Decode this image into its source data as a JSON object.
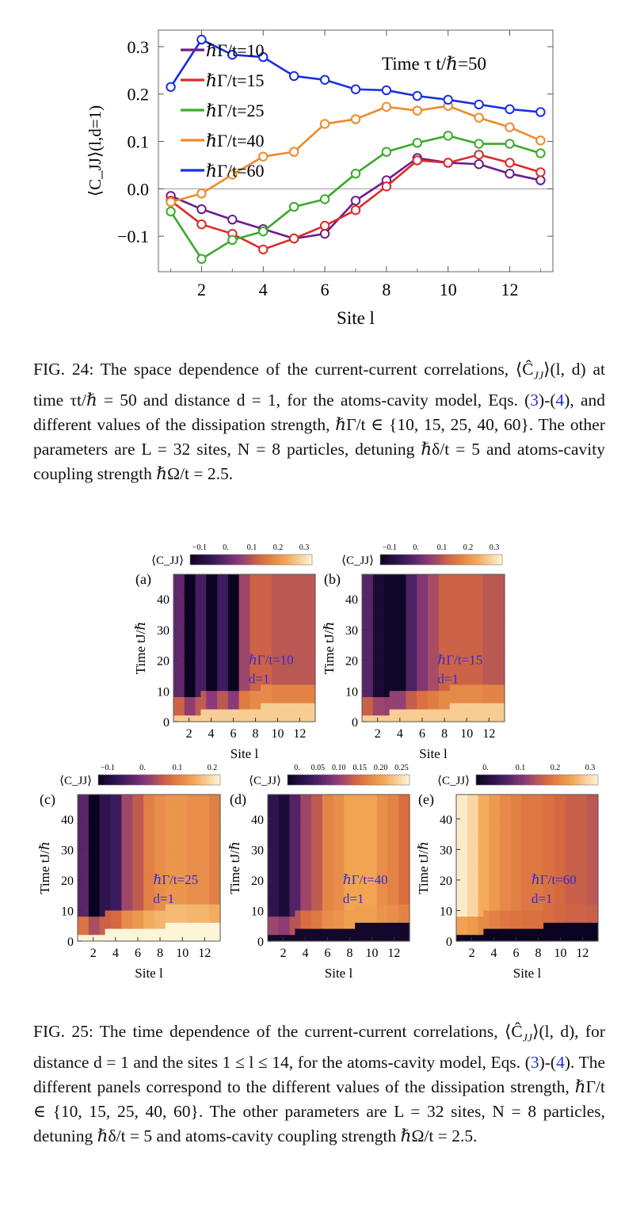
{
  "fig24": {
    "label": "FIG. 24:",
    "caption_a": " The space dependence of the current-current correlations, ⟨Ĉ",
    "caption_b": "⟩(l, d) at time τt/ℏ = 50 and distance d = 1, for the atoms-cavity model, Eqs. (",
    "ref1": "3",
    "caption_c": ")-(",
    "ref2": "4",
    "caption_d": "), and different values of the dissipation strength, ℏΓ/t ∈ {10, 15, 25, 40, 60}. The other parameters are L = 32 sites, N = 8 particles, detuning ℏδ/t = 5 and atoms-cavity coupling strength ℏΩ/t = 2.5.",
    "sub": "JJ"
  },
  "fig25": {
    "label": "FIG. 25:",
    "caption_a": " The time dependence of the current-current correlations, ⟨Ĉ",
    "caption_b": "⟩(l, d), for distance d = 1 and the sites 1 ≤ l ≤ 14, for the atoms-cavity model, Eqs. (",
    "ref1": "3",
    "caption_c": ")-(",
    "ref2": "4",
    "caption_d": "). The different panels correspond to the different values of the dissipation strength, ℏΓ/t ∈ {10, 15, 25, 40, 60}. The other parameters are L = 32 sites, N = 8 particles, detuning ℏδ/t = 5 and atoms-cavity coupling strength ℏΩ/t = 2.5.",
    "sub": "JJ"
  },
  "chart_data": [
    {
      "type": "line",
      "title": "",
      "annotation": "Time τ t/ℏ=50",
      "xlabel": "Site l",
      "ylabel": "⟨C_JJ⟩(l,d=1)",
      "xlim": [
        0.6,
        13.4
      ],
      "ylim": [
        -0.175,
        0.335
      ],
      "xticks": [
        2,
        4,
        6,
        8,
        10,
        12
      ],
      "yticks": [
        -0.1,
        0.0,
        0.1,
        0.2,
        0.3
      ],
      "ytick_labels": [
        "−0.1",
        "0.0",
        "0.1",
        "0.2",
        "0.3"
      ],
      "x": [
        1,
        2,
        3,
        4,
        5,
        6,
        7,
        8,
        9,
        10,
        11,
        12,
        13
      ],
      "series": [
        {
          "name": "ℏΓ/t=10",
          "color": "#6a1d8a",
          "values": [
            -0.015,
            -0.043,
            -0.065,
            -0.085,
            -0.105,
            -0.095,
            -0.025,
            0.018,
            0.065,
            0.055,
            0.052,
            0.032,
            0.018
          ]
        },
        {
          "name": "ℏΓ/t=15",
          "color": "#dd2a2a",
          "values": [
            -0.025,
            -0.075,
            -0.095,
            -0.128,
            -0.105,
            -0.078,
            -0.045,
            0.005,
            0.06,
            0.055,
            0.072,
            0.055,
            0.035
          ]
        },
        {
          "name": "ℏΓ/t=25",
          "color": "#3aaa2a",
          "values": [
            -0.048,
            -0.148,
            -0.108,
            -0.09,
            -0.038,
            -0.022,
            0.032,
            0.078,
            0.097,
            0.112,
            0.095,
            0.095,
            0.075
          ]
        },
        {
          "name": "ℏΓ/t=40",
          "color": "#ee8a2a",
          "values": [
            -0.028,
            -0.01,
            0.03,
            0.068,
            0.078,
            0.137,
            0.147,
            0.173,
            0.165,
            0.175,
            0.15,
            0.13,
            0.102
          ]
        },
        {
          "name": "ℏΓ/t=60",
          "color": "#1a2ee0",
          "values": [
            0.215,
            0.315,
            0.283,
            0.278,
            0.238,
            0.23,
            0.21,
            0.208,
            0.196,
            0.188,
            0.178,
            0.168,
            0.162
          ]
        }
      ],
      "legend_position": "top-left"
    },
    {
      "type": "heatmap",
      "panels": [
        {
          "tag": "(a)",
          "param": "ℏΓ/t=10",
          "dist": "d=1",
          "colorbar_label": "⟨C_JJ⟩",
          "colorbar_ticks": [
            "−0.1",
            "0.",
            "0.1",
            "0.2",
            "0.3"
          ],
          "xlabel": "Site l",
          "ylabel": "Time tJ/ℏ",
          "xticks": [
            "2",
            "4",
            "6",
            "8",
            "10",
            "12"
          ],
          "yticks": [
            "0",
            "10",
            "20",
            "30",
            "40"
          ],
          "late_profile": [
            -0.02,
            -0.15,
            -0.05,
            -0.16,
            -0.06,
            -0.16,
            0.05,
            0.1,
            0.1,
            0.08,
            0.08,
            0.08,
            0.08
          ],
          "light_value": 0.3,
          "dark_value": -0.15
        },
        {
          "tag": "(b)",
          "param": "ℏΓ/t=15",
          "dist": "d=1",
          "colorbar_label": "⟨C_JJ⟩",
          "colorbar_ticks": [
            "−0.1",
            "0.",
            "0.1",
            "0.2",
            "0.3"
          ],
          "xlabel": "Site l",
          "ylabel": "Time tJ/ℏ",
          "xticks": [
            "2",
            "4",
            "6",
            "8",
            "10",
            "12"
          ],
          "yticks": [
            "0",
            "10",
            "20",
            "30",
            "40"
          ],
          "late_profile": [
            -0.03,
            -0.12,
            -0.14,
            -0.14,
            -0.04,
            0.02,
            0.06,
            0.1,
            0.1,
            0.1,
            0.1,
            0.08,
            0.08
          ],
          "light_value": 0.3,
          "dark_value": -0.15
        },
        {
          "tag": "(c)",
          "param": "ℏΓ/t=25",
          "dist": "d=1",
          "colorbar_label": "⟨C_JJ⟩",
          "colorbar_ticks": [
            "−0.1",
            "0.",
            "0.1",
            "0.2"
          ],
          "xlabel": "Site l",
          "ylabel": "Time tJ/ℏ",
          "xticks": [
            "2",
            "4",
            "6",
            "8",
            "10",
            "12"
          ],
          "yticks": [
            "0",
            "10",
            "20",
            "30",
            "40"
          ],
          "late_profile": [
            -0.05,
            -0.16,
            -0.1,
            -0.08,
            0.02,
            0.05,
            0.1,
            0.12,
            0.13,
            0.13,
            0.12,
            0.12,
            0.1
          ],
          "light_value": 0.24,
          "dark_value": -0.16
        },
        {
          "tag": "(d)",
          "param": "ℏΓ/t=40",
          "dist": "d=1",
          "colorbar_label": "⟨C_JJ⟩",
          "colorbar_ticks": [
            "0.",
            "0.05",
            "0.10",
            "0.15",
            "0.20",
            "0.25"
          ],
          "xlabel": "Site l",
          "ylabel": "Time tJ/ℏ",
          "xticks": [
            "2",
            "4",
            "6",
            "8",
            "10",
            "12"
          ],
          "yticks": [
            "0",
            "10",
            "20",
            "30",
            "40"
          ],
          "late_profile": [
            0.02,
            0.0,
            0.05,
            0.1,
            0.12,
            0.16,
            0.17,
            0.19,
            0.19,
            0.19,
            0.17,
            0.16,
            0.14
          ],
          "light_value": 0.25,
          "dark_value": -0.02
        },
        {
          "tag": "(e)",
          "param": "ℏΓ/t=60",
          "dist": "d=1",
          "colorbar_label": "⟨C_JJ⟩",
          "colorbar_ticks": [
            "0.",
            "0.1",
            "0.2",
            "0.3"
          ],
          "xlabel": "Site l",
          "ylabel": "Time tJ/ℏ",
          "xticks": [
            "2",
            "4",
            "6",
            "8",
            "10",
            "12"
          ],
          "yticks": [
            "0",
            "10",
            "20",
            "30",
            "40"
          ],
          "late_profile": [
            0.32,
            0.3,
            0.26,
            0.24,
            0.22,
            0.21,
            0.2,
            0.2,
            0.19,
            0.18,
            0.17,
            0.17,
            0.16
          ],
          "light_value": 0.33,
          "dark_value": -0.02
        }
      ]
    }
  ]
}
